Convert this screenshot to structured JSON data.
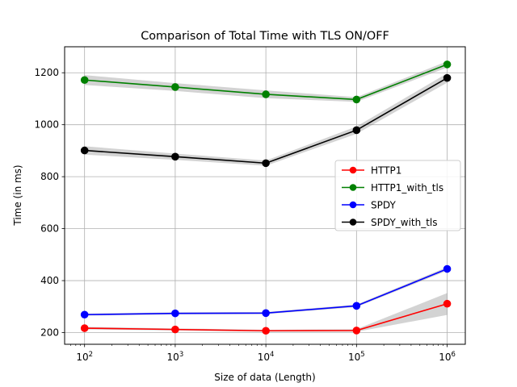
{
  "chart_data": {
    "type": "line",
    "title": "Comparison of Total Time with TLS ON/OFF",
    "xlabel": "Size of data (Length)",
    "ylabel": "Time (in ms)",
    "x_scale": "log",
    "x": [
      100,
      1000,
      10000,
      100000,
      1000000
    ],
    "x_tick_labels": [
      {
        "base": "10",
        "exp": "2"
      },
      {
        "base": "10",
        "exp": "3"
      },
      {
        "base": "10",
        "exp": "4"
      },
      {
        "base": "10",
        "exp": "5"
      },
      {
        "base": "10",
        "exp": "6"
      }
    ],
    "y_ticks": [
      200,
      400,
      600,
      800,
      1000,
      1200
    ],
    "y_tick_labels": [
      "200",
      "400",
      "600",
      "800",
      "1000",
      "1200"
    ],
    "xlim_exp": [
      1.78,
      6.2
    ],
    "ylim": [
      155,
      1300
    ],
    "grid": true,
    "legend_position": "center-right",
    "series": [
      {
        "name": "HTTP1",
        "color": "#ff0000",
        "values": [
          217,
          212,
          207,
          208,
          311
        ],
        "band": [
          [
            212,
            222
          ],
          [
            208,
            216
          ],
          [
            203,
            211
          ],
          [
            203,
            213
          ],
          [
            268,
            352
          ]
        ]
      },
      {
        "name": "HTTP1_with_tls",
        "color": "#008000",
        "values": [
          1172,
          1145,
          1117,
          1097,
          1232
        ],
        "band": [
          [
            1153,
            1191
          ],
          [
            1130,
            1160
          ],
          [
            1102,
            1132
          ],
          [
            1088,
            1106
          ],
          [
            1220,
            1244
          ]
        ]
      },
      {
        "name": "SPDY",
        "color": "#0000ff",
        "values": [
          269,
          274,
          275,
          303,
          445
        ],
        "band": [
          [
            265,
            273
          ],
          [
            270,
            278
          ],
          [
            271,
            279
          ],
          [
            298,
            308
          ],
          [
            438,
            452
          ]
        ]
      },
      {
        "name": "SPDY_with_tls",
        "color": "#000000",
        "values": [
          901,
          877,
          852,
          979,
          1180
        ],
        "band": [
          [
            885,
            917
          ],
          [
            865,
            889
          ],
          [
            842,
            862
          ],
          [
            965,
            993
          ],
          [
            1162,
            1198
          ]
        ]
      }
    ]
  }
}
